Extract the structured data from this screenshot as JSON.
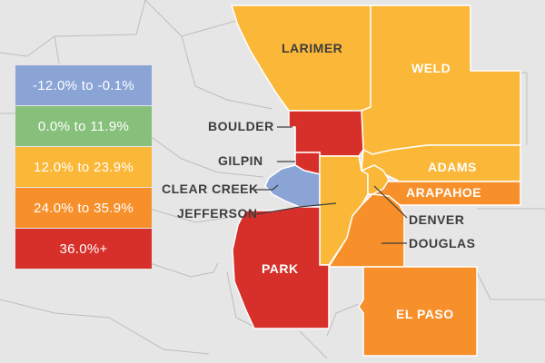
{
  "colors": {
    "background": "#e6e6e6",
    "county_border": "#ffffff",
    "outline": "#bdbdbd",
    "label_dark": "#3d3d3d"
  },
  "legend": [
    {
      "label": "-12.0% to -0.1%",
      "color": "#8aa4d6"
    },
    {
      "label": "0.0% to 11.9%",
      "color": "#86c07a"
    },
    {
      "label": "12.0% to 23.9%",
      "color": "#fbb737"
    },
    {
      "label": "24.0% to 35.9%",
      "color": "#f7902b"
    },
    {
      "label": "36.0%+",
      "color": "#d7302a"
    }
  ],
  "counties": {
    "larimer": {
      "name": "LARIMER",
      "color": "#fbb737"
    },
    "weld": {
      "name": "WELD",
      "color": "#fbb737"
    },
    "boulder": {
      "name": "BOULDER",
      "color": "#d7302a"
    },
    "gilpin": {
      "name": "GILPIN",
      "color": "#d7302a"
    },
    "adams": {
      "name": "ADAMS",
      "color": "#fbb737"
    },
    "arapahoe": {
      "name": "ARAPAHOE",
      "color": "#f7902b"
    },
    "clear_creek": {
      "name": "CLEAR CREEK",
      "color": "#8aa4d6"
    },
    "jefferson": {
      "name": "JEFFERSON",
      "color": "#fbb737"
    },
    "denver": {
      "name": "DENVER",
      "color": "#fbb737"
    },
    "douglas": {
      "name": "DOUGLAS",
      "color": "#f7902b"
    },
    "park": {
      "name": "PARK",
      "color": "#d7302a"
    },
    "el_paso": {
      "name": "EL PASO",
      "color": "#f7902b"
    }
  }
}
